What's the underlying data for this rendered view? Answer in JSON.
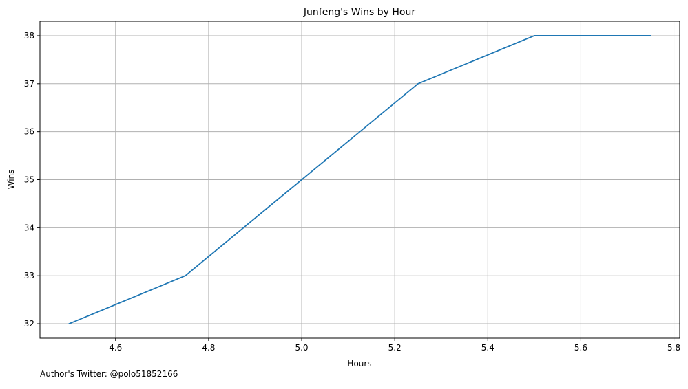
{
  "chart_data": {
    "type": "line",
    "title": "Junfeng's Wins by Hour",
    "xlabel": "Hours",
    "ylabel": "Wins",
    "x": [
      4.5,
      4.75,
      5.0,
      5.25,
      5.5,
      5.75
    ],
    "series": [
      {
        "values": [
          32,
          33,
          35,
          37,
          38,
          38
        ],
        "color": "#1f77b4"
      }
    ],
    "xlim": [
      4.4375,
      5.8125
    ],
    "ylim": [
      31.7,
      38.3
    ],
    "x_ticks": [
      4.6,
      4.8,
      5.0,
      5.2,
      5.4,
      5.6,
      5.8
    ],
    "x_tick_labels": [
      "4.6",
      "4.8",
      "5.0",
      "5.2",
      "5.4",
      "5.6",
      "5.8"
    ],
    "y_ticks": [
      32,
      33,
      34,
      35,
      36,
      37,
      38
    ],
    "y_tick_labels": [
      "32",
      "33",
      "34",
      "35",
      "36",
      "37",
      "38"
    ],
    "grid": true
  },
  "footer": {
    "note": "Author's Twitter: @polo51852166"
  }
}
